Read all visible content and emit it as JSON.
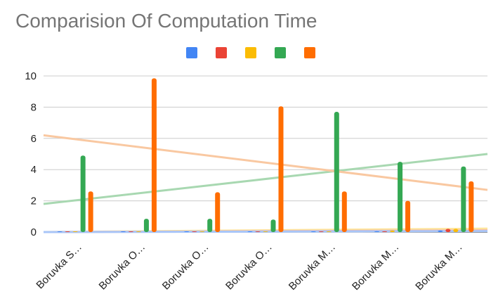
{
  "chart_data": {
    "type": "bar",
    "title": "Comparision Of Computation Time",
    "xlabel": "",
    "ylabel": "",
    "ylim": [
      0,
      10
    ],
    "yticks": [
      0,
      2,
      4,
      6,
      8,
      10
    ],
    "grid": true,
    "legend_position": "top",
    "categories": [
      "Boruvka S…",
      "Boruvka O…",
      "Boruvka O…",
      "Boruvka O…",
      "Boruvka M…",
      "Boruvka M…",
      "Boruvka M…"
    ],
    "series": [
      {
        "color": "#4285f4",
        "values": [
          0.01,
          0.01,
          0.01,
          0.02,
          0.03,
          0.05,
          0.1
        ]
      },
      {
        "color": "#ea4335",
        "values": [
          0.01,
          0.01,
          0.01,
          0.01,
          0.02,
          0.05,
          0.2
        ]
      },
      {
        "color": "#fbbc04",
        "values": [
          0.01,
          0.01,
          0.01,
          0.02,
          0.05,
          0.1,
          0.2
        ]
      },
      {
        "color": "#34a853",
        "values": [
          4.9,
          0.85,
          0.85,
          0.8,
          7.7,
          4.5,
          4.2
        ]
      },
      {
        "color": "#ff6d01",
        "values": [
          2.6,
          9.85,
          2.55,
          8.05,
          2.6,
          2.0,
          3.25
        ]
      }
    ],
    "trendlines": [
      {
        "series_color": "#34a853",
        "color": "#a8d8b1",
        "start": 1.8,
        "end": 5.0
      },
      {
        "series_color": "#ff6d01",
        "color": "#f9c8a1",
        "start": 6.2,
        "end": 2.7
      },
      {
        "series_color": "#fbbc04",
        "color": "#fde49b",
        "start": 0.0,
        "end": 0.22
      },
      {
        "series_color": "#ea4335",
        "color": "#f5b1aa",
        "start": 0.0,
        "end": 0.1
      },
      {
        "series_color": "#4285f4",
        "color": "#a9c6f8",
        "start": 0.0,
        "end": 0.06
      }
    ]
  }
}
